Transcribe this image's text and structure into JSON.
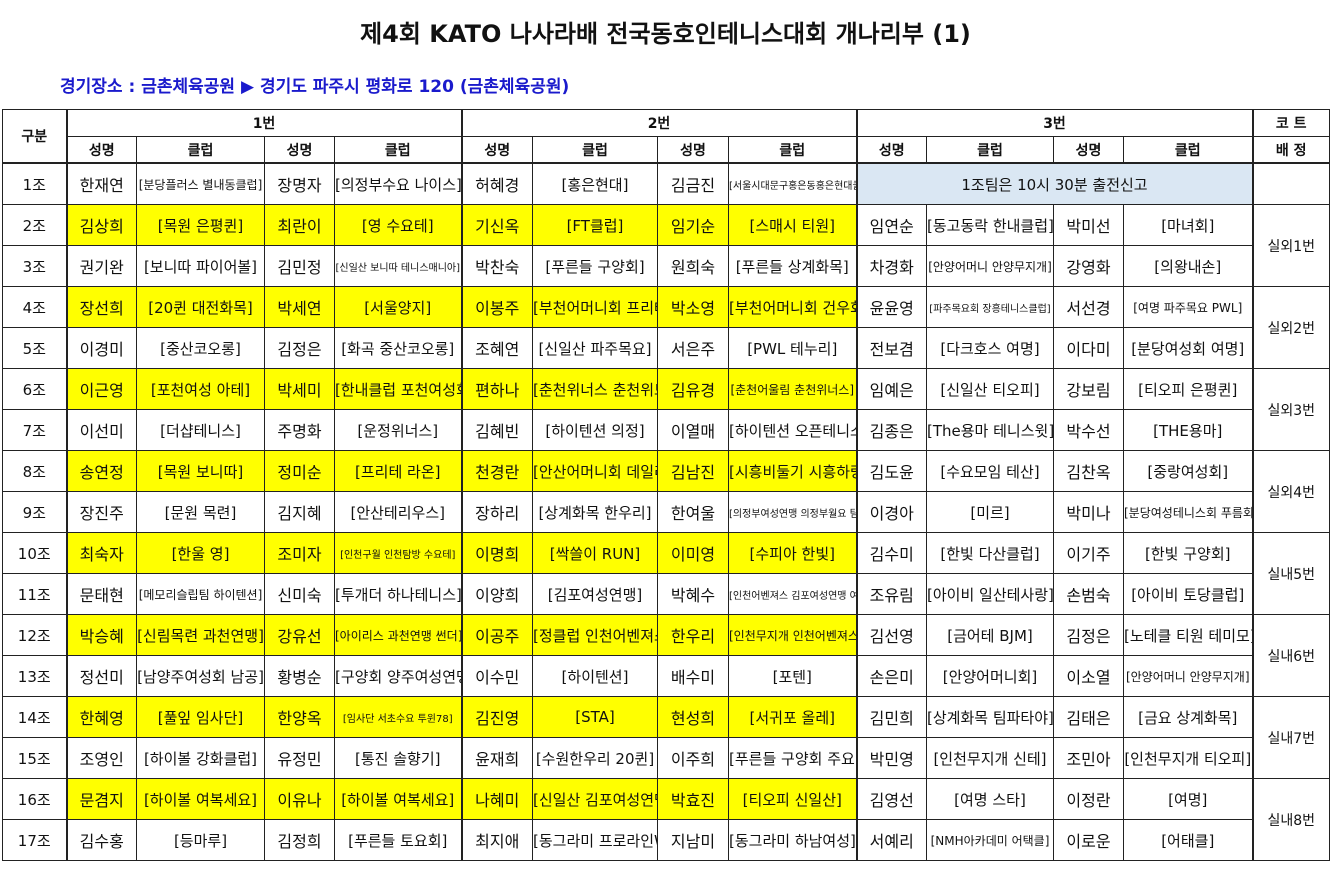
{
  "title": "제4회 KATO 나사라배 전국동호인테니스대회 개나리부 (1)",
  "venue": "경기장소 : 금촌체육공원 ▶ 경기도 파주시 평화로 120 (금촌체육공원)",
  "headers": {
    "group": "구분",
    "team1": "1번",
    "team2": "2번",
    "team3": "3번",
    "court_top": "코 트",
    "court_bottom": "배 정",
    "name": "성명",
    "club": "클럽"
  },
  "notice": "1조팀은  10시 30분 출전신고",
  "courts": [
    "실외1번",
    "실외2번",
    "실외3번",
    "실외4번",
    "실내5번",
    "실내6번",
    "실내7번",
    "실내8번"
  ],
  "rows": [
    {
      "group": "1조",
      "p": [
        [
          "한재연",
          "[분당플러스 별내동클럽]"
        ],
        [
          "장명자",
          "[의정부수요 나이스]"
        ],
        [
          "허혜경",
          "[홍은현대]"
        ],
        [
          "김금진",
          "[서울시대문구홍은동홍은현대클럽]"
        ],
        [
          "",
          ""
        ],
        [
          "",
          ""
        ]
      ]
    },
    {
      "group": "2조",
      "p": [
        [
          "김상희",
          "[목원 은평퀸]"
        ],
        [
          "최란이",
          "[영 수요테]"
        ],
        [
          "기신옥",
          "[FT클럽]"
        ],
        [
          "임기순",
          "[스매시 티원]"
        ],
        [
          "임연순",
          "[동고동락 한내클럽]"
        ],
        [
          "박미선",
          "[마녀회]"
        ]
      ]
    },
    {
      "group": "3조",
      "p": [
        [
          "권기완",
          "[보니따 파이어볼]"
        ],
        [
          "김민정",
          "[신일산 보니따 테니스매니아]"
        ],
        [
          "박찬숙",
          "[푸른들 구양회]"
        ],
        [
          "원희숙",
          "[푸른들 상계화목]"
        ],
        [
          "차경화",
          "[안양어머니 안양무지개]"
        ],
        [
          "강영화",
          "[의왕내손]"
        ]
      ]
    },
    {
      "group": "4조",
      "p": [
        [
          "장선희",
          "[20퀸 대전화목]"
        ],
        [
          "박세연",
          "[서울양지]"
        ],
        [
          "이봉주",
          "[부천어머니회 프리테]"
        ],
        [
          "박소영",
          "[부천어머니회 건우회]"
        ],
        [
          "윤윤영",
          "[파주목요회 장흥테니스클럽]"
        ],
        [
          "서선경",
          "[여명 파주목요 PWL]"
        ]
      ]
    },
    {
      "group": "5조",
      "p": [
        [
          "이경미",
          "[중산코오롱]"
        ],
        [
          "김정은",
          "[화곡 중산코오롱]"
        ],
        [
          "조혜연",
          "[신일산 파주목요]"
        ],
        [
          "서은주",
          "[PWL 테누리]"
        ],
        [
          "전보겸",
          "[다크호스 여명]"
        ],
        [
          "이다미",
          "[분당여성회 여명]"
        ]
      ]
    },
    {
      "group": "6조",
      "p": [
        [
          "이근영",
          "[포천여성 아테]"
        ],
        [
          "박세미",
          "[한내클럽 포천여성회]"
        ],
        [
          "편하나",
          "[춘천위너스 춘천위드]"
        ],
        [
          "김유경",
          "[춘천어울림 춘천위너스]"
        ],
        [
          "임예은",
          "[신일산 티오피]"
        ],
        [
          "강보림",
          "[티오피 은평퀸]"
        ]
      ]
    },
    {
      "group": "7조",
      "p": [
        [
          "이선미",
          "[더샵테니스]"
        ],
        [
          "주명화",
          "[운정위너스]"
        ],
        [
          "김혜빈",
          "[하이텐션 의정]"
        ],
        [
          "이열매",
          "[하이텐션 오픈테니스]"
        ],
        [
          "김종은",
          "[The용마 테니스윗]"
        ],
        [
          "박수선",
          "[THE용마]"
        ]
      ]
    },
    {
      "group": "8조",
      "p": [
        [
          "송연정",
          "[목원 보니따]"
        ],
        [
          "정미순",
          "[프리테 라온]"
        ],
        [
          "천경란",
          "[안산어머니회 데일리]"
        ],
        [
          "김남진",
          "[시흥비둘기 시흥하랑]"
        ],
        [
          "김도윤",
          "[수요모임 테산]"
        ],
        [
          "김찬옥",
          "[중랑여성회]"
        ]
      ]
    },
    {
      "group": "9조",
      "p": [
        [
          "장진주",
          "[문원 목련]"
        ],
        [
          "김지혜",
          "[안산테리우스]"
        ],
        [
          "장하리",
          "[상계화목 한우리]"
        ],
        [
          "한여울",
          "[의정부여성연맹 의정부월요 팀엠리]"
        ],
        [
          "이경아",
          "[미르]"
        ],
        [
          "박미나",
          "[분당여성테니스회 푸름회]"
        ]
      ]
    },
    {
      "group": "10조",
      "p": [
        [
          "최숙자",
          "[한울 영]"
        ],
        [
          "조미자",
          "[인천구월 인천탐방 수요테]"
        ],
        [
          "이명희",
          "[싹쓸이 RUN]"
        ],
        [
          "이미영",
          "[수피아 한빛]"
        ],
        [
          "김수미",
          "[한빛 다산클럽]"
        ],
        [
          "이기주",
          "[한빛 구양회]"
        ]
      ]
    },
    {
      "group": "11조",
      "p": [
        [
          "문태현",
          "[메모리슬립팀 하이텐션]"
        ],
        [
          "신미숙",
          "[투개더 하나테니스]"
        ],
        [
          "이양희",
          "[김포여성연맹]"
        ],
        [
          "박혜수",
          "[인천어벤져스 김포여성연맹 여복세요]"
        ],
        [
          "조유림",
          "[아이비 일산테사랑]"
        ],
        [
          "손범숙",
          "[아이비 토당클럽]"
        ]
      ]
    },
    {
      "group": "12조",
      "p": [
        [
          "박승혜",
          "[신림목련 과천연맹]"
        ],
        [
          "강유선",
          "[아이리스 과천연맹 썬더]"
        ],
        [
          "이공주",
          "[정클럽 인천어벤져스]"
        ],
        [
          "한우리",
          "[인천무지개 인천어벤져스]"
        ],
        [
          "김선영",
          "[금어테 BJM]"
        ],
        [
          "김정은",
          "[노테클 티원 테미모]"
        ]
      ]
    },
    {
      "group": "13조",
      "p": [
        [
          "정선미",
          "[남양주여성회 남공]"
        ],
        [
          "황병순",
          "[구양회 양주여성연맹]"
        ],
        [
          "이수민",
          "[하이텐션]"
        ],
        [
          "배수미",
          "[포텐]"
        ],
        [
          "손은미",
          "[안양어머니회]"
        ],
        [
          "이소열",
          "[안양어머니 안양무지개]"
        ]
      ]
    },
    {
      "group": "14조",
      "p": [
        [
          "한혜영",
          "[풀잎 임사단]"
        ],
        [
          "한양옥",
          "[임사단 서초수요 투윈78]"
        ],
        [
          "김진영",
          "[STA]"
        ],
        [
          "현성희",
          "[서귀포 올레]"
        ],
        [
          "김민희",
          "[상계화목 팀파타야]"
        ],
        [
          "김태은",
          "[금요 상계화목]"
        ]
      ]
    },
    {
      "group": "15조",
      "p": [
        [
          "조영인",
          "[하이볼 강화클럽]"
        ],
        [
          "유정민",
          "[통진 솔향기]"
        ],
        [
          "윤재희",
          "[수원한우리 20퀸]"
        ],
        [
          "이주희",
          "[푸른들 구양회 주요]"
        ],
        [
          "박민영",
          "[인천무지개 신테]"
        ],
        [
          "조민아",
          "[인천무지개 티오피]"
        ]
      ]
    },
    {
      "group": "16조",
      "p": [
        [
          "문겸지",
          "[하이볼 여복세요]"
        ],
        [
          "이유나",
          "[하이볼 여복세요]"
        ],
        [
          "나혜미",
          "[신일산 김포여성연맹]"
        ],
        [
          "박효진",
          "[티오피 신일산]"
        ],
        [
          "김영선",
          "[여명 스타]"
        ],
        [
          "이정란",
          "[여명]"
        ]
      ]
    },
    {
      "group": "17조",
      "p": [
        [
          "김수홍",
          "[등마루]"
        ],
        [
          "김정희",
          "[푸른들 토요회]"
        ],
        [
          "최지애",
          "[동그라미 프로라인W]"
        ],
        [
          "지남미",
          "[동그라미 하남여성]"
        ],
        [
          "서예리",
          "[NMH아카데미 어택클]"
        ],
        [
          "이로운",
          "[어태클]"
        ]
      ]
    }
  ]
}
